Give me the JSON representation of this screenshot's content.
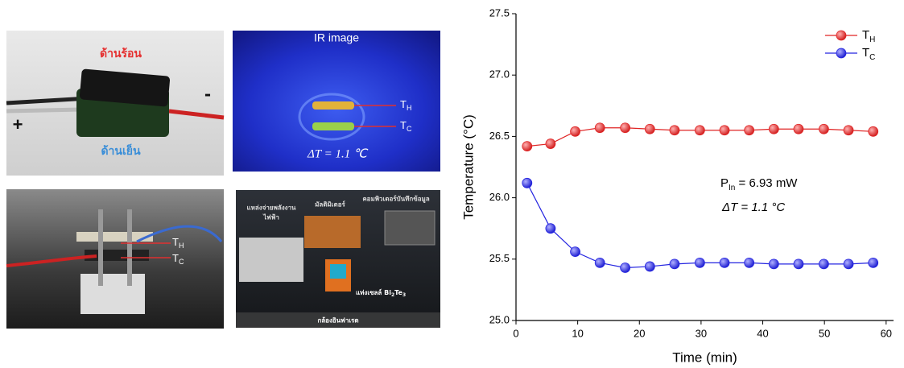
{
  "photos": {
    "module": {
      "hot": "ด้านร้อน",
      "cold": "ด้านเย็น",
      "plus": "+",
      "minus": "-"
    },
    "ir": {
      "title": "IR image",
      "th": {
        "main": "T",
        "sub": "H"
      },
      "tc": {
        "main": "T",
        "sub": "C"
      },
      "delta": "ΔT = 1.1 ℃"
    },
    "rig": {
      "th": {
        "main": "T",
        "sub": "H"
      },
      "tc": {
        "main": "T",
        "sub": "C"
      }
    },
    "setup": {
      "supply": [
        "แหล่งจ่ายพลังงาน",
        "ไฟฟ้า"
      ],
      "meter": "มัลติมิเตอร์",
      "computer": "คอมพิวเตอร์บันทึกข้อมูล",
      "cell": {
        "main": "แท่งเซลล์ Bi",
        "sub": "2",
        "main2": "Te",
        "sub2": "3"
      },
      "camera": "กล้องอินฟาเรด"
    }
  },
  "chart_data": {
    "type": "line",
    "xlabel": "Time (min)",
    "ylabel": "Temperature (°C)",
    "x": [
      1.8,
      5.6,
      9.6,
      13.6,
      17.7,
      21.7,
      25.7,
      29.8,
      33.8,
      37.8,
      41.8,
      45.8,
      49.9,
      53.9,
      57.9
    ],
    "series": [
      {
        "name": "T",
        "name_sub": "H",
        "color": "#e02424",
        "values": [
          26.42,
          26.44,
          26.54,
          26.57,
          26.57,
          26.56,
          26.55,
          26.55,
          26.55,
          26.55,
          26.56,
          26.56,
          26.56,
          26.55,
          26.54
        ]
      },
      {
        "name": "T",
        "name_sub": "C",
        "color": "#2424e0",
        "values": [
          26.12,
          25.75,
          25.56,
          25.47,
          25.43,
          25.44,
          25.46,
          25.47,
          25.47,
          25.47,
          25.46,
          25.46,
          25.46,
          25.46,
          25.47
        ]
      }
    ],
    "xlim": [
      0,
      61.2
    ],
    "ylim": [
      25,
      27.5
    ],
    "xticks": [
      0,
      10,
      20,
      30,
      40,
      50,
      60
    ],
    "yticks": [
      {
        "value": 25,
        "label": "25.0"
      },
      25.5,
      {
        "value": 26,
        "label": "26.0"
      },
      26.5,
      {
        "value": 27,
        "label": "27.0"
      },
      27.5
    ],
    "legend": "top-right",
    "annotations": [
      {
        "main": "P",
        "sub": "In",
        "rest": " = 6.93 mW"
      },
      {
        "text": "ΔT = 1.1 °C"
      }
    ]
  }
}
